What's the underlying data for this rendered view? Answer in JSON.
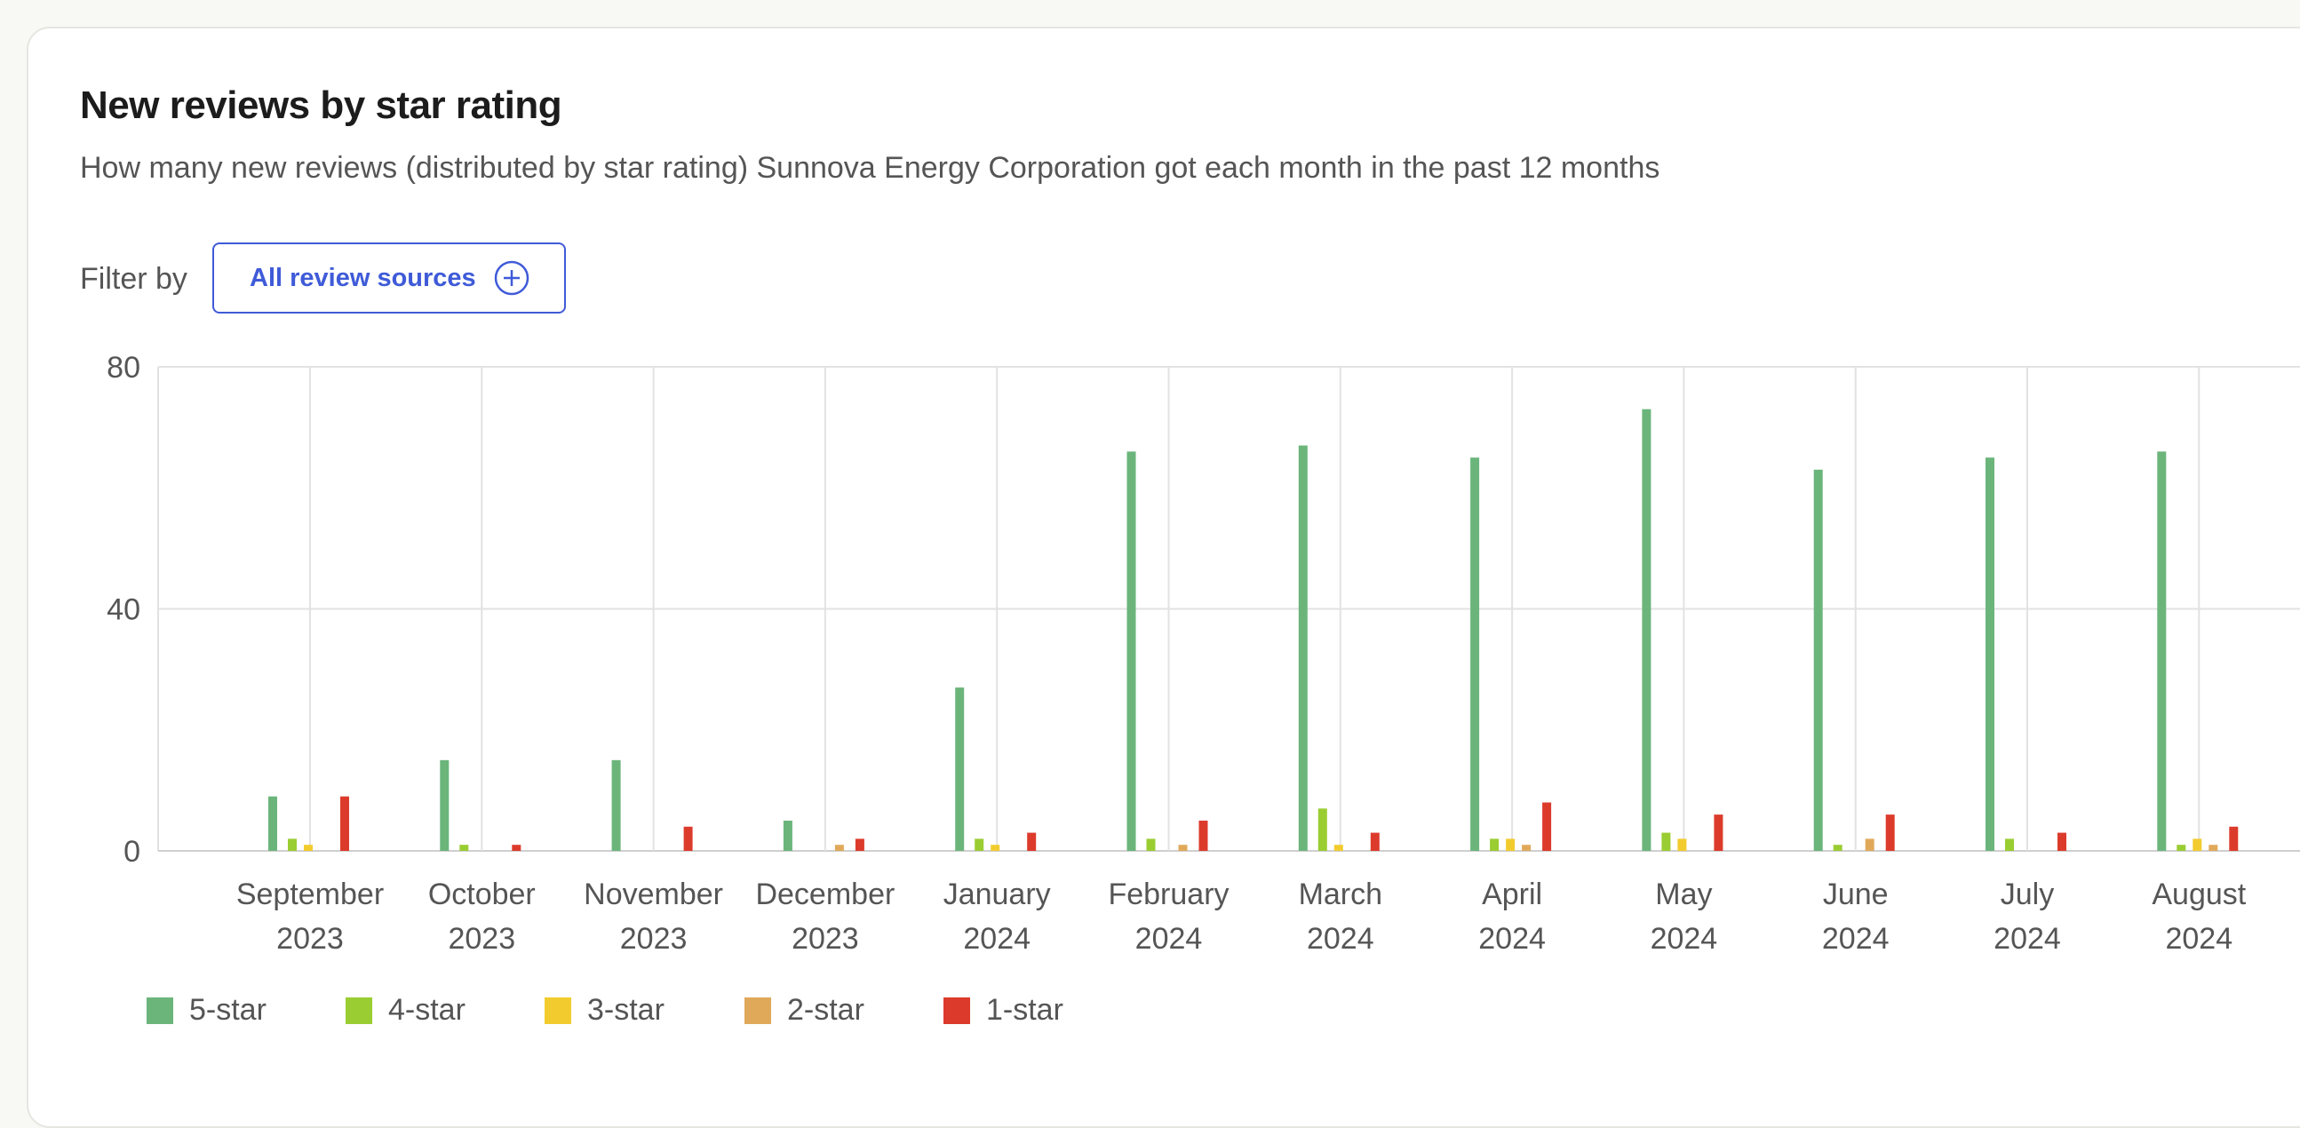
{
  "card": {
    "title": "New reviews by star rating",
    "subtitle": "How many new reviews (distributed by star rating) Sunnova Energy Corporation got each month in the past 12 months"
  },
  "filter": {
    "label": "Filter by",
    "button_label": "All review sources",
    "button_icon": "plus-circle-icon",
    "accent_color": "#3f5bd8"
  },
  "chart_data": {
    "type": "bar",
    "title": "New reviews by star rating",
    "xlabel": "",
    "ylabel": "",
    "ylim": [
      0,
      80
    ],
    "yticks": [
      0,
      40,
      80
    ],
    "grid": true,
    "legend_position": "bottom-left",
    "categories": [
      [
        "September",
        "2023"
      ],
      [
        "October",
        "2023"
      ],
      [
        "November",
        "2023"
      ],
      [
        "December",
        "2023"
      ],
      [
        "January",
        "2024"
      ],
      [
        "February",
        "2024"
      ],
      [
        "March",
        "2024"
      ],
      [
        "April",
        "2024"
      ],
      [
        "May",
        "2024"
      ],
      [
        "June",
        "2024"
      ],
      [
        "July",
        "2024"
      ],
      [
        "August",
        "2024"
      ]
    ],
    "series": [
      {
        "name": "5-star",
        "color": "#6bb57b",
        "values": [
          9,
          15,
          15,
          5,
          27,
          66,
          67,
          65,
          73,
          63,
          65,
          66
        ]
      },
      {
        "name": "4-star",
        "color": "#9acd32",
        "values": [
          2,
          1,
          0,
          0,
          2,
          2,
          7,
          2,
          3,
          1,
          2,
          1
        ]
      },
      {
        "name": "3-star",
        "color": "#f2cc2e",
        "values": [
          1,
          0,
          0,
          0,
          1,
          0,
          1,
          2,
          2,
          0,
          0,
          2
        ]
      },
      {
        "name": "2-star",
        "color": "#e0a95a",
        "values": [
          0,
          0,
          0,
          1,
          0,
          1,
          0,
          1,
          0,
          2,
          0,
          1
        ]
      },
      {
        "name": "1-star",
        "color": "#dc3b2c",
        "values": [
          9,
          1,
          4,
          2,
          3,
          5,
          3,
          8,
          6,
          6,
          3,
          4
        ]
      }
    ]
  }
}
